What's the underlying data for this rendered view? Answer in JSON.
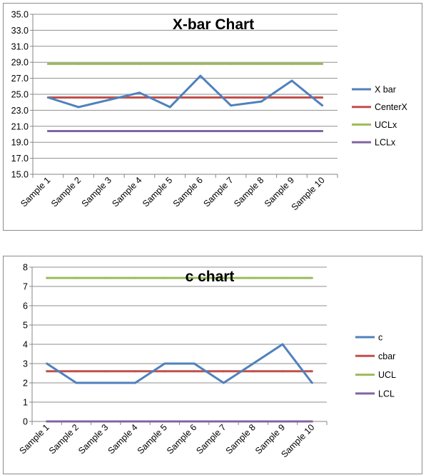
{
  "chart_data": [
    {
      "type": "line",
      "title": "X-bar Chart",
      "xlabel": "",
      "ylabel": "",
      "categories": [
        "Sample 1",
        "Sample 2",
        "Sample 3",
        "Sample 4",
        "Sample 5",
        "Sample 6",
        "Sample 7",
        "Sample 8",
        "Sample 9",
        "Sample 10"
      ],
      "ylim": [
        15.0,
        35.0
      ],
      "yticks": [
        "15.0",
        "17.0",
        "19.0",
        "21.0",
        "23.0",
        "25.0",
        "27.0",
        "29.0",
        "31.0",
        "33.0",
        "35.0"
      ],
      "grid": "horizontal",
      "legend_position": "right",
      "series": [
        {
          "name": "X bar",
          "color": "#4f81bd",
          "values": [
            24.6,
            23.4,
            24.3,
            25.2,
            23.4,
            27.3,
            23.6,
            24.1,
            26.7,
            23.6
          ]
        },
        {
          "name": "CenterX",
          "color": "#c0504d",
          "values": [
            24.6,
            24.6,
            24.6,
            24.6,
            24.6,
            24.6,
            24.6,
            24.6,
            24.6,
            24.6
          ]
        },
        {
          "name": "UCLx",
          "color": "#9bbb59",
          "values": [
            28.8,
            28.8,
            28.8,
            28.8,
            28.8,
            28.8,
            28.8,
            28.8,
            28.8,
            28.8
          ]
        },
        {
          "name": "LCLx",
          "color": "#8064a2",
          "values": [
            20.4,
            20.4,
            20.4,
            20.4,
            20.4,
            20.4,
            20.4,
            20.4,
            20.4,
            20.4
          ]
        }
      ]
    },
    {
      "type": "line",
      "title": "c chart",
      "xlabel": "",
      "ylabel": "",
      "categories": [
        "Sample 1",
        "Sample 2",
        "Sample 3",
        "Sample 4",
        "Sample 5",
        "Sample 6",
        "Sample 7",
        "Sample 8",
        "Sample 9",
        "Sample 10"
      ],
      "ylim": [
        0,
        8
      ],
      "yticks": [
        "0",
        "1",
        "2",
        "3",
        "4",
        "5",
        "6",
        "7",
        "8"
      ],
      "grid": "horizontal",
      "legend_position": "right",
      "series": [
        {
          "name": "c",
          "color": "#4f81bd",
          "values": [
            3,
            2,
            2,
            2,
            3,
            3,
            2,
            3,
            4,
            2
          ]
        },
        {
          "name": "cbar",
          "color": "#c0504d",
          "values": [
            2.6,
            2.6,
            2.6,
            2.6,
            2.6,
            2.6,
            2.6,
            2.6,
            2.6,
            2.6
          ]
        },
        {
          "name": "UCL",
          "color": "#9bbb59",
          "values": [
            7.44,
            7.44,
            7.44,
            7.44,
            7.44,
            7.44,
            7.44,
            7.44,
            7.44,
            7.44
          ]
        },
        {
          "name": "LCL",
          "color": "#8064a2",
          "values": [
            0,
            0,
            0,
            0,
            0,
            0,
            0,
            0,
            0,
            0
          ]
        }
      ]
    }
  ]
}
